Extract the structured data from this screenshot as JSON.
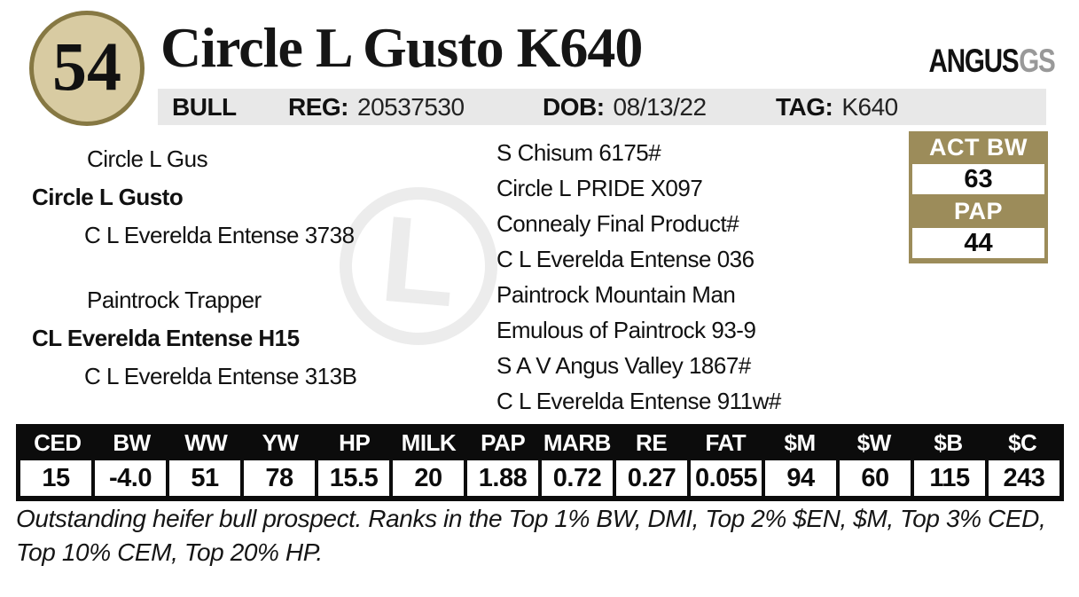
{
  "lot": {
    "number": "54"
  },
  "header": {
    "title": "Circle L Gusto K640",
    "brand": {
      "name": "ANGUS",
      "suffix": "GS"
    },
    "info_bar": {
      "sex": "BULL",
      "reg": {
        "label": "REG:",
        "value": "20537530"
      },
      "dob": {
        "label": "DOB:",
        "value": "08/13/22"
      },
      "tag": {
        "label": "TAG:",
        "value": "K640"
      }
    }
  },
  "pedigree": {
    "sire": {
      "grandsire": "Circle L Gus",
      "name": "Circle L Gusto",
      "granddam": "C L Everelda Entense 3738"
    },
    "dam": {
      "grandsire": "Paintrock Trapper",
      "name": "CL Everelda Entense H15",
      "granddam": "C L Everelda Entense 313B"
    },
    "ancestors": [
      "S Chisum 6175#",
      "Circle L PRIDE X097",
      "Connealy Final Product#",
      "C L Everelda Entense 036",
      "Paintrock Mountain Man",
      "Emulous of Paintrock 93-9",
      "S A V Angus Valley 1867#",
      "C L Everelda Entense 911w#"
    ]
  },
  "measurements": {
    "rows": [
      {
        "label": "ACT BW",
        "value": "63"
      },
      {
        "label": "PAP",
        "value": "44"
      }
    ]
  },
  "epd_table": {
    "columns": [
      "CED",
      "BW",
      "WW",
      "YW",
      "HP",
      "MILK",
      "PAP",
      "MARB",
      "RE",
      "FAT",
      "$M",
      "$W",
      "$B",
      "$C"
    ],
    "values": [
      "15",
      "-4.0",
      "51",
      "78",
      "15.5",
      "20",
      "1.88",
      "0.72",
      "0.27",
      "0.055",
      "94",
      "60",
      "115",
      "243"
    ]
  },
  "footnote": "Outstanding heifer bull prospect. Ranks in the Top 1% BW, DMI, Top 2% $EN, $M, Top 3% CED, Top 10% CEM, Top 20% HP.",
  "watermark": {
    "letter": "L"
  },
  "colors": {
    "accent_tan": "#9c8c5a",
    "badge_fill": "#d8cba2",
    "badge_border": "#867843",
    "bar_gray": "#e8e8e8",
    "table_black": "#0c0c0c",
    "brand_gray": "#999999"
  }
}
